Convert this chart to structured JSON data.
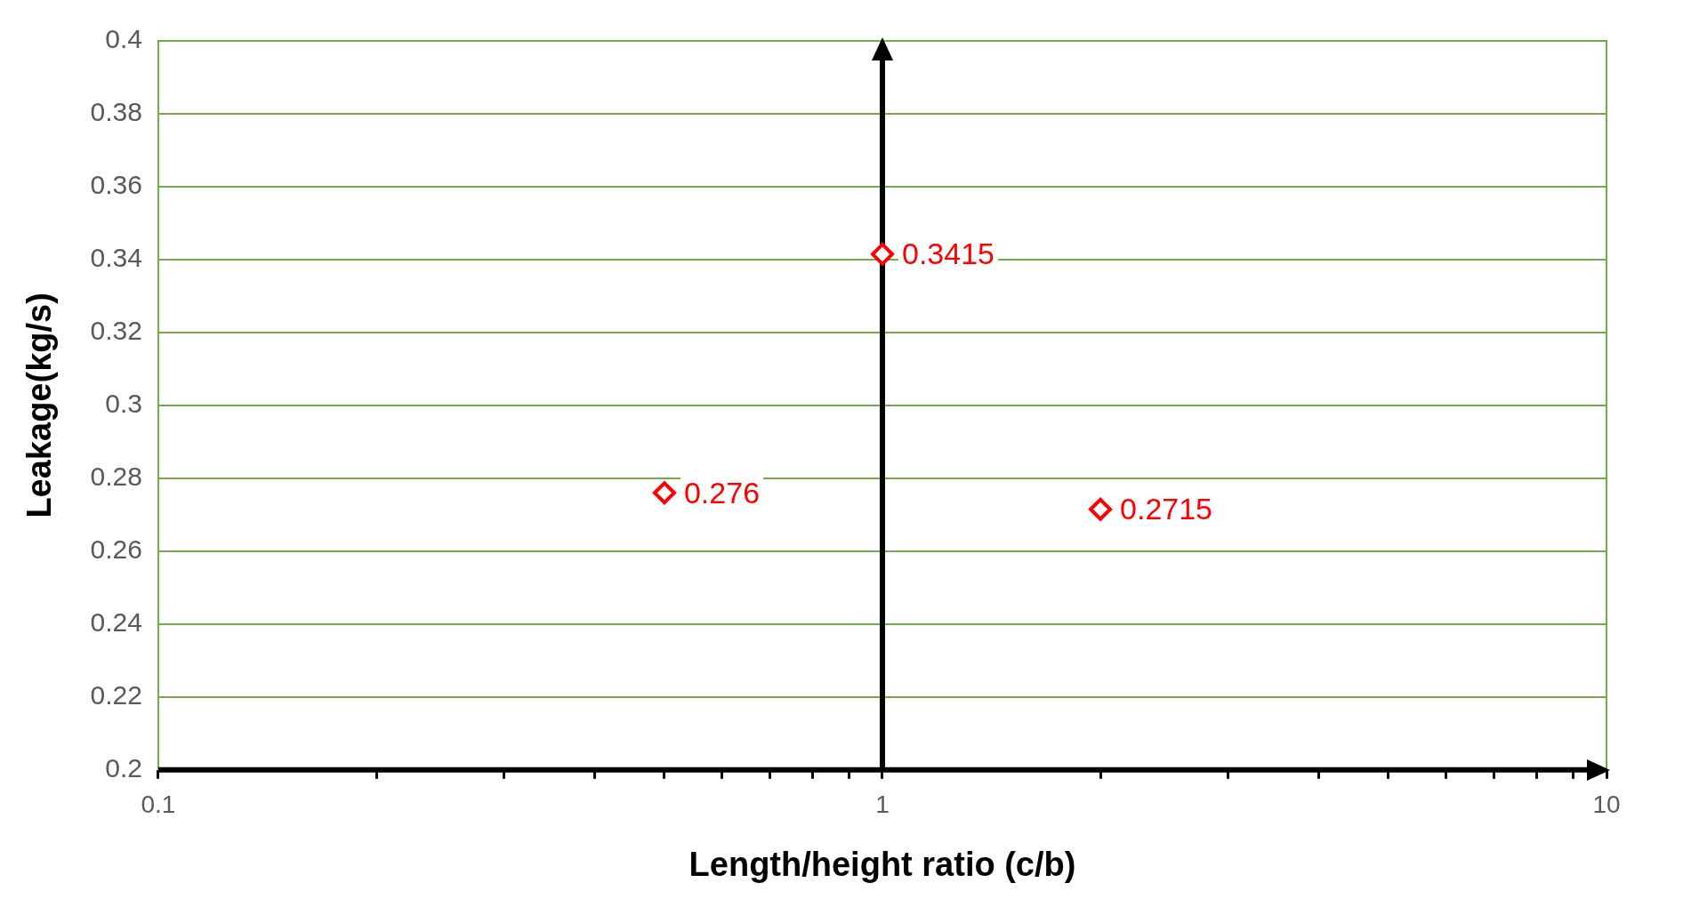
{
  "chart_data": {
    "type": "scatter",
    "xlabel": "Length/height ratio (c/b)",
    "ylabel": "Leakage(kg/s)",
    "x": [
      0.5,
      1,
      2
    ],
    "series": [
      {
        "color": "#ff0000",
        "values": [
          0.276,
          0.3415,
          0.2715
        ]
      }
    ],
    "data_labels": true,
    "marker": "diamond",
    "log": "x",
    "grid": "y",
    "legend": false,
    "xlim": [
      0.1,
      10
    ],
    "xticks": [
      0.1,
      {
        "value": 0.2,
        "label": null
      },
      {
        "value": 0.3,
        "label": null
      },
      {
        "value": 0.4,
        "label": null
      },
      {
        "value": 0.5,
        "label": null
      },
      {
        "value": 0.6,
        "label": null
      },
      {
        "value": 0.7,
        "label": null
      },
      {
        "value": 0.8,
        "label": null
      },
      {
        "value": 0.9,
        "label": null
      },
      1,
      {
        "value": 2,
        "label": null
      },
      {
        "value": 3,
        "label": null
      },
      {
        "value": 4,
        "label": null
      },
      {
        "value": 5,
        "label": null
      },
      {
        "value": 6,
        "label": null
      },
      {
        "value": 7,
        "label": null
      },
      {
        "value": 8,
        "label": null
      },
      {
        "value": 9,
        "label": null
      },
      10
    ],
    "ylim": [
      0.2,
      0.4
    ],
    "yticks": [
      0.2,
      0.22,
      0.24,
      0.26,
      0.28,
      0.3,
      0.32,
      0.34,
      0.36,
      0.38,
      0.4
    ],
    "ref_lines": [
      {
        "axis": "x",
        "value": 1,
        "color": "#000000"
      }
    ]
  }
}
